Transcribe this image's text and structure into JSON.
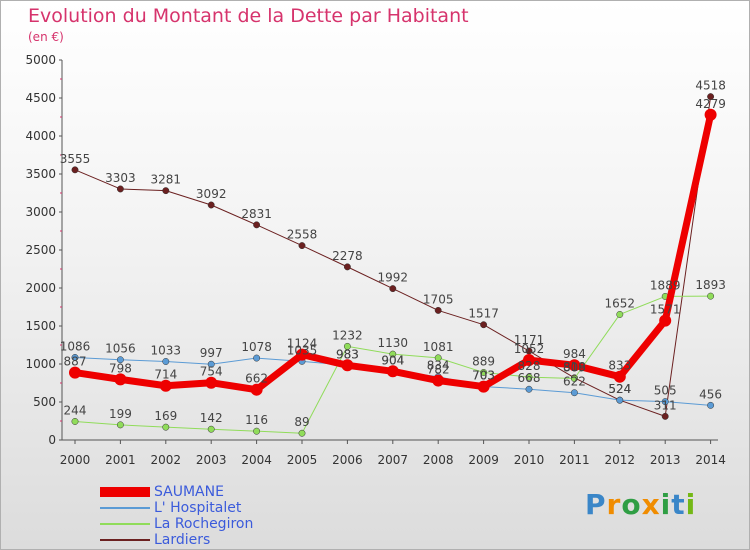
{
  "title": "Evolution du Montant de la Dette par Habitant",
  "unit_label": "(en €)",
  "logo_text": "Proxiti",
  "chart_data": {
    "type": "line",
    "categories": [
      "2000",
      "2001",
      "2002",
      "2003",
      "2004",
      "2005",
      "2006",
      "2007",
      "2008",
      "2009",
      "2010",
      "2011",
      "2012",
      "2013",
      "2014"
    ],
    "yticks": [
      "0",
      "500",
      "1000",
      "1500",
      "2000",
      "2500",
      "3000",
      "3500",
      "4000",
      "4500",
      "5000"
    ],
    "ylim": [
      0,
      5000
    ],
    "grid": false,
    "legend_position": "bottom-left",
    "series": [
      {
        "name": "SAUMANE",
        "color": "#ee0000",
        "width": 7,
        "values": [
          887,
          798,
          714,
          754,
          662,
          1124,
          983,
          904,
          782,
          703,
          1052,
          984,
          833,
          1571,
          4279
        ],
        "labels": [
          "887",
          "798",
          "714",
          "754",
          "662",
          "1124",
          "983",
          "904",
          "782",
          "703",
          "1052",
          "984",
          "833",
          "1571",
          "4279"
        ]
      },
      {
        "name": "L' Hospitalet",
        "color": "#5b9bd5",
        "width": 1,
        "values": [
          1086,
          1056,
          1033,
          997,
          1078,
          1035,
          983,
          904,
          834,
          703,
          668,
          622,
          524,
          505,
          456
        ],
        "labels": [
          "1086",
          "1056",
          "1033",
          "997",
          "1078",
          "1035",
          "983",
          "904",
          "834",
          "703",
          "668",
          "622",
          "524",
          "505",
          "456"
        ]
      },
      {
        "name": "La Rochegiron",
        "color": "#90dc5a",
        "width": 1,
        "values": [
          244,
          199,
          169,
          142,
          116,
          89,
          1232,
          1130,
          1081,
          889,
          828,
          809,
          1652,
          1889,
          1893
        ],
        "labels": [
          "244",
          "199",
          "169",
          "142",
          "116",
          "89",
          "1232",
          "1130",
          "1081",
          "889",
          "828",
          "809",
          "1652",
          "1889",
          "1893"
        ]
      },
      {
        "name": "Lardiers",
        "color": "#6b2020",
        "width": 1,
        "values": [
          3555,
          3303,
          3281,
          3092,
          2831,
          2558,
          2278,
          1992,
          1705,
          1517,
          1171,
          818,
          524,
          311,
          4518
        ],
        "labels": [
          "3555",
          "3303",
          "3281",
          "3092",
          "2831",
          "2558",
          "2278",
          "1992",
          "1705",
          "1517",
          "1171",
          "818",
          "524",
          "311",
          "4518"
        ]
      }
    ]
  }
}
